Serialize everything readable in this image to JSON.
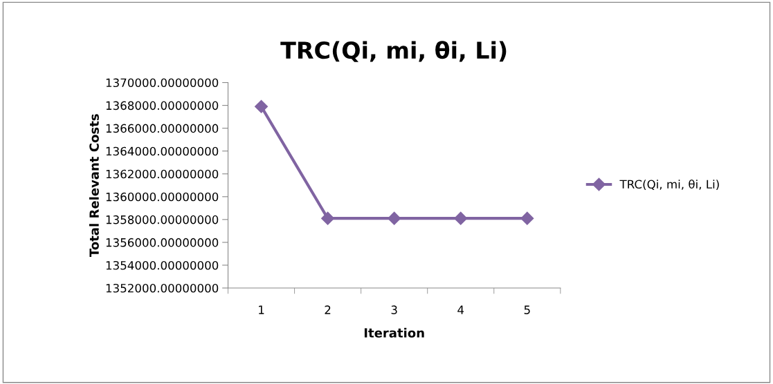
{
  "chart_data": {
    "type": "line",
    "title": "TRC(Qi, mi, θi, Li)",
    "xlabel": "Iteration",
    "ylabel": "Total Relevant Costs",
    "categories": [
      "1",
      "2",
      "3",
      "4",
      "5"
    ],
    "series": [
      {
        "name": "TRC(Qi, mi, θi, Li)",
        "color": "#8064a2",
        "values": [
          1367900,
          1358100,
          1358100,
          1358100,
          1358100
        ]
      }
    ],
    "ylim": [
      1352000,
      1370000
    ],
    "yticks": [
      {
        "value": 1352000,
        "label": "1352000.00000000"
      },
      {
        "value": 1354000,
        "label": "1354000.00000000"
      },
      {
        "value": 1356000,
        "label": "1356000.00000000"
      },
      {
        "value": 1358000,
        "label": "1358000.00000000"
      },
      {
        "value": 1360000,
        "label": "1360000.00000000"
      },
      {
        "value": 1362000,
        "label": "1362000.00000000"
      },
      {
        "value": 1364000,
        "label": "1364000.00000000"
      },
      {
        "value": 1366000,
        "label": "1366000.00000000"
      },
      {
        "value": 1368000,
        "label": "1368000.00000000"
      },
      {
        "value": 1370000,
        "label": "1370000.00000000"
      }
    ],
    "marker": "diamond",
    "line_style": "solid",
    "grid": false,
    "legend": "right"
  }
}
